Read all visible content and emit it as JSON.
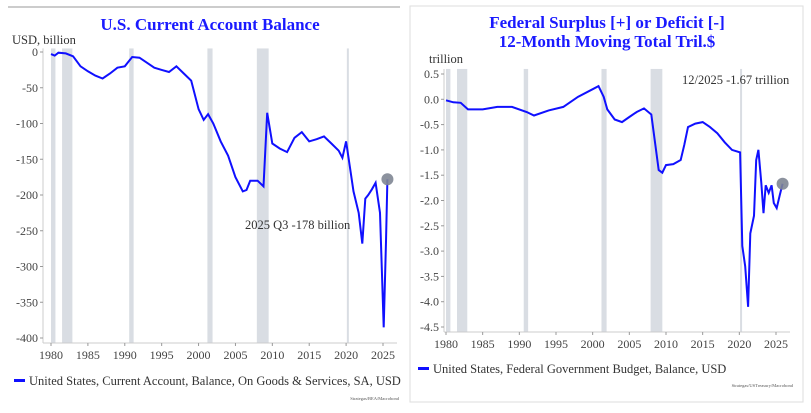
{
  "colors": {
    "line": "#1010ff",
    "title": "#1a1aff",
    "recession": "#d9dde3",
    "marker": "#7f8694"
  },
  "recessions": [
    [
      1980.0,
      1980.6
    ],
    [
      1981.5,
      1982.9
    ],
    [
      1990.6,
      1991.2
    ],
    [
      2001.2,
      2001.9
    ],
    [
      2007.9,
      2009.5
    ],
    [
      2020.1,
      2020.3
    ]
  ],
  "chart_data": [
    {
      "type": "line",
      "title": "U.S. Current Account Balance",
      "ylabel": "USD, billion",
      "xlim": [
        1979,
        2027
      ],
      "ylim": [
        -405,
        5
      ],
      "xticks": [
        "1980",
        "1985",
        "1990",
        "1995",
        "2000",
        "2005",
        "2010",
        "2015",
        "2020",
        "2025"
      ],
      "yticks": [
        "0",
        "-50",
        "-100",
        "-150",
        "-200",
        "-250",
        "-300",
        "-350",
        "-400"
      ],
      "annotation": "2025 Q3 -178 billion",
      "legend": "United States, Current Account, Balance, On Goods & Services, SA, USD",
      "source": "Strategas/BEA/Macrobond",
      "series": [
        {
          "x": [
            1980,
            1980.5,
            1981,
            1982,
            1983,
            1984,
            1985,
            1986,
            1987,
            1988,
            1989,
            1990,
            1991,
            1992,
            1993,
            1994,
            1995,
            1996,
            1997,
            1998,
            1999,
            2000,
            2000.7,
            2001.3,
            2002,
            2003,
            2004,
            2005,
            2006,
            2006.5,
            2007,
            2008,
            2008.8,
            2009.3,
            2010,
            2011,
            2012,
            2013,
            2014,
            2015,
            2016,
            2017,
            2018,
            2019,
            2019.5,
            2020,
            2020.5,
            2021,
            2021.7,
            2022.2,
            2022.6,
            2023,
            2023.5,
            2024,
            2024.6,
            2025.1,
            2025.4,
            2025.6
          ],
          "y": [
            -3,
            -5,
            -1,
            -2,
            -6,
            -20,
            -27,
            -33,
            -37,
            -30,
            -22,
            -20,
            -7,
            -8,
            -15,
            -22,
            -25,
            -28,
            -20,
            -30,
            -40,
            -80,
            -95,
            -87,
            -100,
            -125,
            -145,
            -175,
            -195,
            -193,
            -180,
            -180,
            -188,
            -85,
            -128,
            -135,
            -140,
            -120,
            -112,
            -125,
            -122,
            -118,
            -128,
            -138,
            -148,
            -125,
            -160,
            -195,
            -225,
            -268,
            -205,
            -200,
            -192,
            -183,
            -225,
            -385,
            -265,
            -178
          ]
        }
      ]
    },
    {
      "type": "line",
      "title": "Federal Surplus [+] or Deficit [-]",
      "subtitle": "12-Month Moving Total Tril.$",
      "ylabel": "trillion",
      "xlim": [
        1979.8,
        2027
      ],
      "ylim": [
        -4.65,
        0.6
      ],
      "xticks": [
        "1980",
        "1985",
        "1990",
        "1995",
        "2000",
        "2005",
        "2010",
        "2015",
        "2020",
        "2025"
      ],
      "yticks": [
        "0.5",
        "0.0",
        "-0.5",
        "-1.0",
        "-1.5",
        "-2.0",
        "-2.5",
        "-3.0",
        "-3.5",
        "-4.0",
        "-4.5"
      ],
      "annotation": "12/2025 -1.67 trillion",
      "legend": "United States, Federal Government Budget, Balance, USD",
      "source": "Strategas/USTreasury/Macrobond",
      "series": [
        {
          "x": [
            1980,
            1981,
            1982,
            1983,
            1985,
            1987,
            1989,
            1991,
            1992,
            1994,
            1996,
            1998,
            2000,
            2000.8,
            2001.5,
            2002,
            2003,
            2004,
            2005,
            2006,
            2007,
            2008,
            2009,
            2009.5,
            2010,
            2011,
            2012,
            2012.5,
            2013,
            2014,
            2015,
            2016,
            2017,
            2018,
            2019,
            2020.1,
            2020.4,
            2020.8,
            2021.2,
            2021.5,
            2022,
            2022.3,
            2022.6,
            2023,
            2023.3,
            2023.6,
            2024,
            2024.4,
            2024.7,
            2025.1,
            2025.5,
            2025.9
          ],
          "y": [
            -0.02,
            -0.06,
            -0.07,
            -0.2,
            -0.2,
            -0.15,
            -0.15,
            -0.25,
            -0.32,
            -0.22,
            -0.15,
            0.05,
            0.2,
            0.26,
            0.05,
            -0.2,
            -0.4,
            -0.45,
            -0.35,
            -0.25,
            -0.18,
            -0.3,
            -1.4,
            -1.45,
            -1.3,
            -1.28,
            -1.2,
            -0.9,
            -0.55,
            -0.48,
            -0.45,
            -0.55,
            -0.67,
            -0.85,
            -1.0,
            -1.05,
            -2.9,
            -3.3,
            -4.1,
            -2.65,
            -2.3,
            -1.2,
            -1.0,
            -1.65,
            -2.25,
            -1.7,
            -1.85,
            -1.7,
            -2.05,
            -2.15,
            -1.9,
            -1.67
          ]
        }
      ]
    }
  ]
}
